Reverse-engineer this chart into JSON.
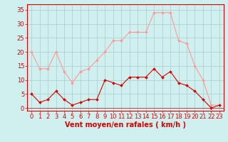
{
  "hours": [
    0,
    1,
    2,
    3,
    4,
    5,
    6,
    7,
    8,
    9,
    10,
    11,
    12,
    13,
    14,
    15,
    16,
    17,
    18,
    19,
    20,
    21,
    22,
    23
  ],
  "wind_avg": [
    5,
    2,
    3,
    6,
    3,
    1,
    2,
    3,
    3,
    10,
    9,
    8,
    11,
    11,
    11,
    14,
    11,
    13,
    9,
    8,
    6,
    3,
    0,
    1
  ],
  "wind_gust": [
    20,
    14,
    14,
    20,
    13,
    9,
    13,
    14,
    17,
    20,
    24,
    24,
    27,
    27,
    27,
    34,
    34,
    34,
    24,
    23,
    15,
    10,
    1,
    1
  ],
  "line_color_avg": "#dd0000",
  "line_color_gust": "#ff9999",
  "bg_color": "#cff0ee",
  "grid_color": "#aacccc",
  "xlabel": "Vent moyen/en rafales ( km/h )",
  "ylabel_ticks": [
    0,
    5,
    10,
    15,
    20,
    25,
    30,
    35
  ],
  "xlim": [
    -0.5,
    23.5
  ],
  "ylim": [
    -1,
    37
  ],
  "xlabel_fontsize": 7,
  "tick_fontsize": 6
}
